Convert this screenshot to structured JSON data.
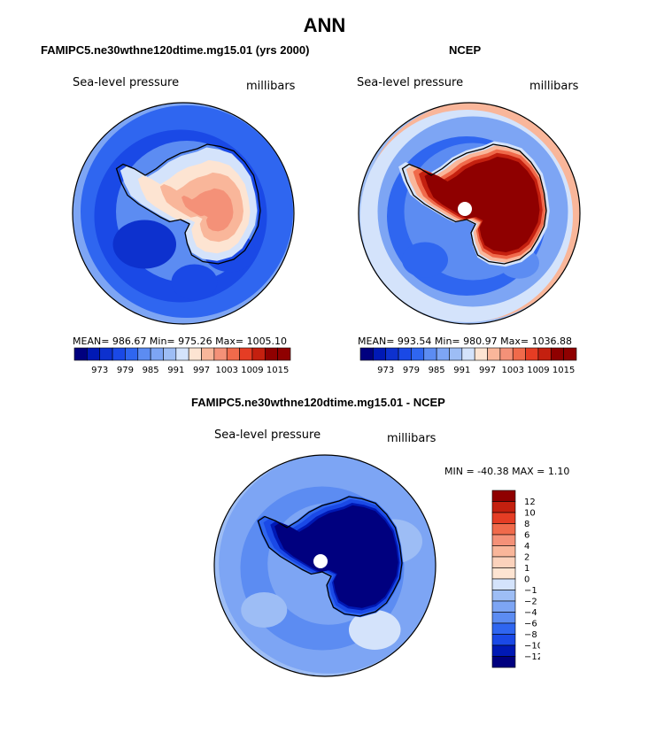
{
  "page": {
    "title": "ANN",
    "colors": {
      "below": "#00007f",
      "deep": "#0019b5",
      "blue": "#1a49e6",
      "mid": "#2f66f0",
      "sky": "#5c8cf2",
      "light": "#9dbdf5",
      "pale": "#d4e3fb",
      "cream": "#fde4d2",
      "peach": "#f9b69a",
      "salmon": "#f49178",
      "orange": "#f06a4b",
      "red": "#e53d24",
      "crimson": "#c4200f",
      "maroon": "#8f0000",
      "coast": "#000000",
      "pole": "#ffffff"
    }
  },
  "chart_data": [
    {
      "type": "heatmap",
      "projection": "south polar stereographic",
      "title": "FAMIPC5.ne30wthne120dtime.mg15.01 (yrs 2000)",
      "variable": "Sea-level pressure",
      "units": "millibars",
      "stats": {
        "mean": "986.67",
        "min": "975.26",
        "max": "1005.10"
      },
      "stats_text": "MEAN= 986.67  Min= 975.26  Max= 1005.10",
      "colorbar": {
        "orientation": "horizontal",
        "levels": [
          970,
          973,
          976,
          979,
          982,
          985,
          988,
          991,
          994,
          997,
          1000,
          1003,
          1006,
          1009,
          1012,
          1015
        ],
        "tick_labels": [
          "973",
          "979",
          "985",
          "991",
          "997",
          "1003",
          "1009",
          "1015"
        ]
      }
    },
    {
      "type": "heatmap",
      "projection": "south polar stereographic",
      "title": "NCEP",
      "variable": "Sea-level pressure",
      "units": "millibars",
      "stats": {
        "mean": "993.54",
        "min": "980.97",
        "max": "1036.88"
      },
      "stats_text": "MEAN= 993.54  Min= 980.97  Max= 1036.88",
      "colorbar": {
        "orientation": "horizontal",
        "levels": [
          970,
          973,
          976,
          979,
          982,
          985,
          988,
          991,
          994,
          997,
          1000,
          1003,
          1006,
          1009,
          1012,
          1015
        ],
        "tick_labels": [
          "973",
          "979",
          "985",
          "991",
          "997",
          "1003",
          "1009",
          "1015"
        ]
      }
    },
    {
      "type": "heatmap",
      "projection": "south polar stereographic",
      "title": "FAMIPC5.ne30wthne120dtime.mg15.01 - NCEP",
      "variable": "Sea-level pressure",
      "units": "millibars",
      "stats": {
        "min": "-40.38",
        "max": "1.10"
      },
      "stats_text": "MIN = -40.38  MAX =   1.10",
      "colorbar": {
        "orientation": "vertical",
        "levels": [
          -12,
          -10,
          -8,
          -6,
          -4,
          -2,
          -1,
          0,
          1,
          2,
          4,
          6,
          8,
          10,
          12
        ],
        "tick_labels": [
          "12",
          "10",
          "8",
          "6",
          "4",
          "2",
          "1",
          "0",
          "−1",
          "−2",
          "−4",
          "−6",
          "−8",
          "−10",
          "−12"
        ]
      }
    }
  ]
}
